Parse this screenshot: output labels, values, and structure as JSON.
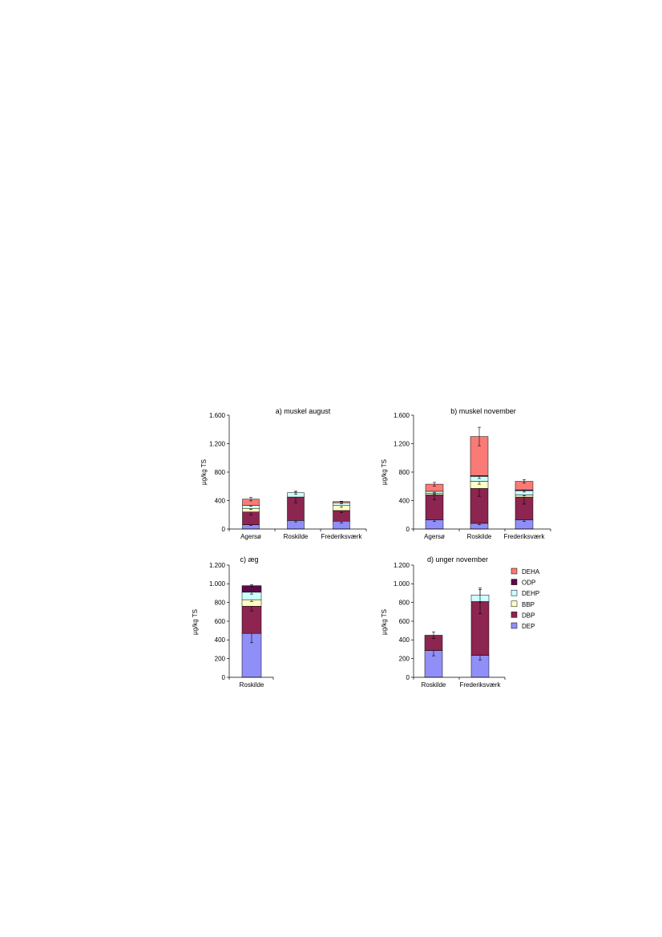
{
  "colors": {
    "DEP": "#8f8ff7",
    "DBP": "#8c2550",
    "BBP": "#ffffc4",
    "DEHP": "#ccffff",
    "ODP": "#5c0b4a",
    "DEHA": "#fa7a76"
  },
  "legend": [
    "DEHA",
    "ODP",
    "DEHP",
    "BBP",
    "DBP",
    "DEP"
  ],
  "chart_data": [
    {
      "type": "bar",
      "stacked": true,
      "title": "a) muskel august",
      "ylabel": "µg/kg TS",
      "ylim": [
        0,
        1600
      ],
      "yticks": [
        0,
        400,
        800,
        1200,
        1600
      ],
      "yticklabels": [
        "0",
        "400",
        "800",
        "1.200",
        "1.600"
      ],
      "categories": [
        "Agersø",
        "Roskilde",
        "Frederiksværk"
      ],
      "series": [
        {
          "name": "DEP",
          "values": [
            60,
            120,
            110
          ],
          "errors": [
            10,
            20,
            25
          ]
        },
        {
          "name": "DBP",
          "values": [
            180,
            330,
            150
          ],
          "errors": [
            40,
            80,
            30
          ]
        },
        {
          "name": "BBP",
          "values": [
            50,
            0,
            70
          ],
          "errors": [
            15,
            0,
            25
          ]
        },
        {
          "name": "DEHP",
          "values": [
            40,
            60,
            40
          ],
          "errors": [
            10,
            20,
            15
          ]
        },
        {
          "name": "ODP",
          "values": [
            0,
            0,
            0
          ],
          "errors": [
            0,
            0,
            0
          ]
        },
        {
          "name": "DEHA",
          "values": [
            90,
            0,
            15
          ],
          "errors": [
            25,
            0,
            5
          ]
        }
      ]
    },
    {
      "type": "bar",
      "stacked": true,
      "title": "b) muskel november",
      "ylabel": "µg/kg TS",
      "ylim": [
        0,
        1600
      ],
      "yticks": [
        0,
        400,
        800,
        1200,
        1600
      ],
      "yticklabels": [
        "0",
        "400",
        "800",
        "1.200",
        "1.600"
      ],
      "categories": [
        "Agersø",
        "Roskilde",
        "Frederiksværk"
      ],
      "series": [
        {
          "name": "DEP",
          "values": [
            130,
            80,
            130
          ],
          "errors": [
            25,
            20,
            25
          ]
        },
        {
          "name": "DBP",
          "values": [
            350,
            490,
            320
          ],
          "errors": [
            70,
            110,
            100
          ]
        },
        {
          "name": "BBP",
          "values": [
            20,
            100,
            30
          ],
          "errors": [
            10,
            40,
            15
          ]
        },
        {
          "name": "DEHP",
          "values": [
            30,
            70,
            60
          ],
          "errors": [
            15,
            30,
            20
          ]
        },
        {
          "name": "ODP",
          "values": [
            0,
            10,
            10
          ],
          "errors": [
            0,
            5,
            5
          ]
        },
        {
          "name": "DEHA",
          "values": [
            100,
            550,
            120
          ],
          "errors": [
            25,
            130,
            25
          ]
        }
      ]
    },
    {
      "type": "bar",
      "stacked": true,
      "title": "c) æg",
      "ylabel": "µg/kg TS",
      "ylim": [
        0,
        1200
      ],
      "yticks": [
        0,
        200,
        400,
        600,
        800,
        1000,
        1200
      ],
      "yticklabels": [
        "0",
        "200",
        "400",
        "600",
        "800",
        "1.000",
        "1.200"
      ],
      "categories": [
        "Roskilde"
      ],
      "series": [
        {
          "name": "DEP",
          "values": [
            470
          ],
          "errors": [
            100
          ]
        },
        {
          "name": "DBP",
          "values": [
            290
          ],
          "errors": [
            50
          ]
        },
        {
          "name": "BBP",
          "values": [
            70
          ],
          "errors": [
            20
          ]
        },
        {
          "name": "DEHP",
          "values": [
            80
          ],
          "errors": [
            20
          ]
        },
        {
          "name": "ODP",
          "values": [
            70
          ],
          "errors": [
            10
          ]
        },
        {
          "name": "DEHA",
          "values": [
            0
          ],
          "errors": [
            0
          ]
        }
      ]
    },
    {
      "type": "bar",
      "stacked": true,
      "title": "d) unger november",
      "ylabel": "µg/kg TS",
      "ylim": [
        0,
        1200
      ],
      "yticks": [
        0,
        200,
        400,
        600,
        800,
        1000,
        1200
      ],
      "yticklabels": [
        "0",
        "200",
        "400",
        "600",
        "800",
        "1.000",
        "1.200"
      ],
      "categories": [
        "Roskilde",
        "Frederiksværk"
      ],
      "series": [
        {
          "name": "DEP",
          "values": [
            285,
            235
          ],
          "errors": [
            55,
            50
          ]
        },
        {
          "name": "DBP",
          "values": [
            165,
            575
          ],
          "errors": [
            35,
            130
          ]
        },
        {
          "name": "BBP",
          "values": [
            0,
            0
          ],
          "errors": [
            0,
            0
          ]
        },
        {
          "name": "DEHP",
          "values": [
            0,
            70
          ],
          "errors": [
            0,
            75
          ]
        },
        {
          "name": "ODP",
          "values": [
            0,
            0
          ],
          "errors": [
            0,
            0
          ]
        },
        {
          "name": "DEHA",
          "values": [
            0,
            0
          ],
          "errors": [
            0,
            0
          ]
        }
      ]
    }
  ]
}
